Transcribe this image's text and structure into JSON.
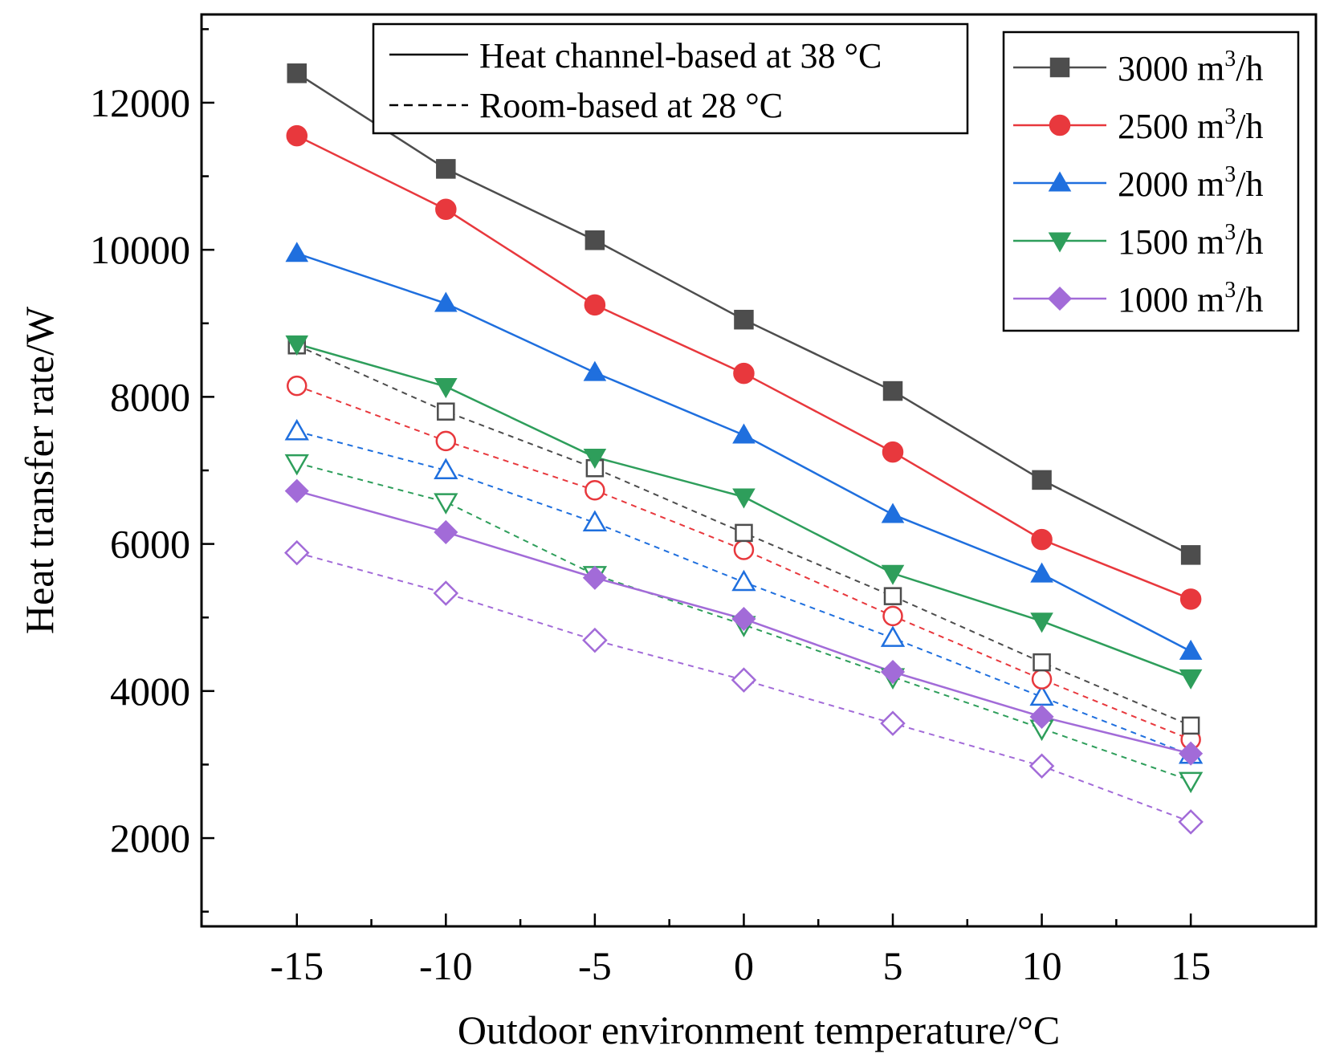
{
  "chart_data": {
    "type": "line",
    "title": "",
    "xlabel": "Outdoor environment temperature/°C",
    "ylabel": "Heat transfer rate/W",
    "x": [
      -15,
      -10,
      -5,
      0,
      5,
      10,
      15
    ],
    "xlim": [
      -18.2,
      19.2
    ],
    "ylim": [
      800,
      13200
    ],
    "xticks": [
      -15,
      -10,
      -5,
      0,
      5,
      10,
      15
    ],
    "xtick_labels": [
      "-15",
      "-10",
      "-5",
      "0",
      "5",
      "10",
      "15"
    ],
    "yticks": [
      2000,
      4000,
      6000,
      8000,
      10000,
      12000
    ],
    "ytick_labels": [
      "2000",
      "4000",
      "6000",
      "8000",
      "10000",
      "12000"
    ],
    "style_legend": {
      "position": "top-center",
      "entries": [
        {
          "label": "Heat channel-based at 38 °C",
          "dash": "solid"
        },
        {
          "label": "Room-based at 28 °C",
          "dash": "dashed"
        }
      ]
    },
    "flow_legend": {
      "position": "top-right",
      "entries": [
        {
          "value": "3000",
          "unit": "m",
          "sup": "3",
          "suffix": "/h",
          "color": "#4d4d4d",
          "marker": "square"
        },
        {
          "value": "2500",
          "unit": "m",
          "sup": "3",
          "suffix": "/h",
          "color": "#e8383d",
          "marker": "circle"
        },
        {
          "value": "2000",
          "unit": "m",
          "sup": "3",
          "suffix": "/h",
          "color": "#1f6fde",
          "marker": "triangle-up"
        },
        {
          "value": "1500",
          "unit": "m",
          "sup": "3",
          "suffix": "/h",
          "color": "#2e9e5b",
          "marker": "triangle-down"
        },
        {
          "value": "1000",
          "unit": "m",
          "sup": "3",
          "suffix": "/h",
          "color": "#a26bd8",
          "marker": "diamond"
        }
      ]
    },
    "series": [
      {
        "name": "3000 m3/h - Heat channel-based at 38 °C",
        "color": "#4d4d4d",
        "marker": "square",
        "filled": true,
        "dash": "solid",
        "values": [
          12400,
          11100,
          10130,
          9050,
          8080,
          6870,
          5850
        ]
      },
      {
        "name": "2500 m3/h - Heat channel-based at 38 °C",
        "color": "#e8383d",
        "marker": "circle",
        "filled": true,
        "dash": "solid",
        "values": [
          11550,
          10550,
          9250,
          8320,
          7250,
          6060,
          5250
        ]
      },
      {
        "name": "2000 m3/h - Heat channel-based at 38 °C",
        "color": "#1f6fde",
        "marker": "triangle-up",
        "filled": true,
        "dash": "solid",
        "values": [
          9950,
          9270,
          8330,
          7480,
          6400,
          5590,
          4540
        ]
      },
      {
        "name": "1500 m3/h - Heat channel-based at 38 °C",
        "color": "#2e9e5b",
        "marker": "triangle-down",
        "filled": true,
        "dash": "solid",
        "values": [
          8720,
          8140,
          7180,
          6640,
          5600,
          4950,
          4180
        ]
      },
      {
        "name": "1000 m3/h - Heat channel-based at 38 °C",
        "color": "#a26bd8",
        "marker": "diamond",
        "filled": true,
        "dash": "solid",
        "values": [
          6720,
          6160,
          5540,
          4980,
          4260,
          3650,
          3150
        ]
      },
      {
        "name": "3000 m3/h - Room-based at 28 °C",
        "color": "#4d4d4d",
        "marker": "square",
        "filled": false,
        "dash": "dashed",
        "values": [
          8700,
          7800,
          7030,
          6150,
          5290,
          4390,
          3530
        ]
      },
      {
        "name": "2500 m3/h - Room-based at 28 °C",
        "color": "#e8383d",
        "marker": "circle",
        "filled": false,
        "dash": "dashed",
        "values": [
          8150,
          7400,
          6730,
          5920,
          5020,
          4160,
          3340
        ]
      },
      {
        "name": "2000 m3/h - Room-based at 28 °C",
        "color": "#1f6fde",
        "marker": "triangle-up",
        "filled": false,
        "dash": "dashed",
        "values": [
          7530,
          7000,
          6290,
          5480,
          4720,
          3920,
          3130
        ]
      },
      {
        "name": "1500 m3/h - Room-based at 28 °C",
        "color": "#2e9e5b",
        "marker": "triangle-down",
        "filled": false,
        "dash": "dashed",
        "values": [
          7100,
          6570,
          5580,
          4900,
          4190,
          3490,
          2780
        ]
      },
      {
        "name": "1000 m3/h - Room-based at 28 °C",
        "color": "#a26bd8",
        "marker": "diamond",
        "filled": false,
        "dash": "dashed",
        "values": [
          5880,
          5330,
          4690,
          4150,
          3560,
          2980,
          2220
        ]
      }
    ]
  }
}
